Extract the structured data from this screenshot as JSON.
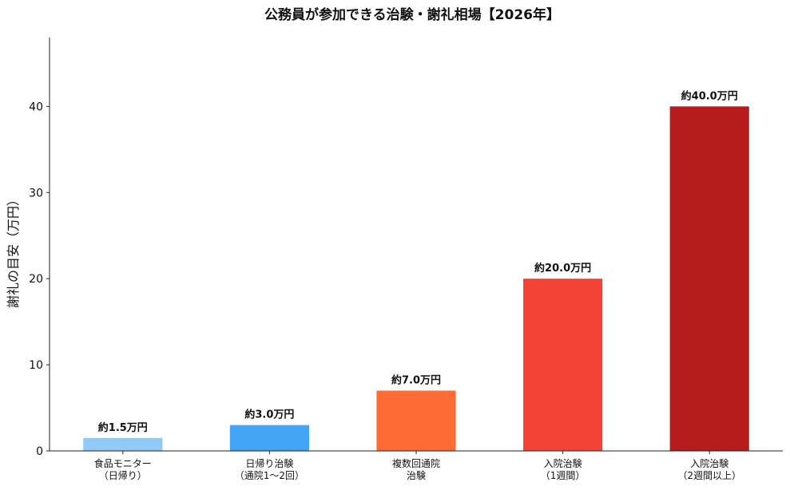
{
  "chart_data": {
    "type": "bar",
    "title": "公務員が参加できる治験・謝礼相場【2026年】",
    "ylabel": "謝礼の目安（万円）",
    "xlabel": "",
    "ylim": [
      0,
      48
    ],
    "yticks": [
      0,
      10,
      20,
      30,
      40
    ],
    "grid": false,
    "categories": [
      [
        "食品モニター",
        "（日帰り）"
      ],
      [
        "日帰り治験",
        "（通院1〜2回）"
      ],
      [
        "複数回通院",
        "治験"
      ],
      [
        "入院治験",
        "（1週間）"
      ],
      [
        "入院治験",
        "（2週間以上）"
      ]
    ],
    "values": [
      1.5,
      3.0,
      7.0,
      20.0,
      40.0
    ],
    "data_labels": [
      "約1.5万円",
      "約3.0万円",
      "約7.0万円",
      "約20.0万円",
      "約40.0万円"
    ],
    "colors": [
      "#90CAF9",
      "#42A5F5",
      "#FF6B35",
      "#F44336",
      "#B71C1C"
    ]
  }
}
